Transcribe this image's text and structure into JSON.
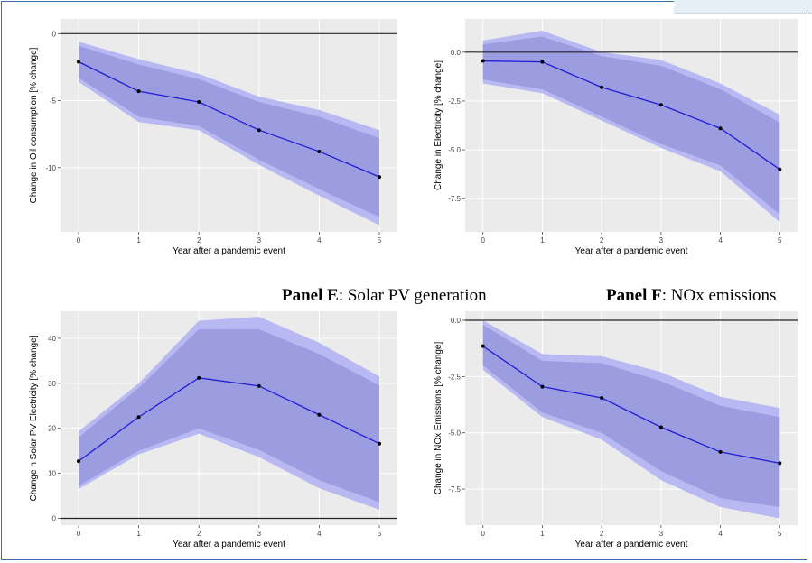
{
  "panel_titles": [
    {
      "bold": "",
      "text": ""
    },
    {
      "bold": "",
      "text": ""
    },
    {
      "bold": "Panel E",
      "text": ": Solar PV generation"
    },
    {
      "bold": "Panel F",
      "text": ": NOx emissions"
    }
  ],
  "colors": {
    "panel_bg": "#ebebeb",
    "grid": "#ffffff",
    "band_outer": "#b8b8f2",
    "band_inner": "#9c9ce0",
    "line": "#1f1fd6",
    "point": "#000000",
    "zero_line": "#222222",
    "frame": "#3a6fb0"
  },
  "chart_data": [
    {
      "type": "line",
      "xlabel": "Year after a pandemic event",
      "ylabel": "Change in Oil consumption [% change]",
      "x": [
        0,
        1,
        2,
        3,
        4,
        5
      ],
      "xticks": [
        "0",
        "1",
        "2",
        "3",
        "4",
        "5"
      ],
      "xlim": [
        -0.3,
        5.3
      ],
      "yticks": [
        0,
        -5,
        -10
      ],
      "yticklabels": [
        "0",
        "-5",
        "-10"
      ],
      "ylim": [
        -14.8,
        1.1
      ],
      "zero_line": 0,
      "grid": true,
      "series": [
        {
          "values": [
            -2.1,
            -4.3,
            -5.1,
            -7.2,
            -8.8,
            -10.7
          ]
        }
      ],
      "band_inner": {
        "lower": [
          -3.3,
          -6.2,
          -6.9,
          -9.4,
          -11.6,
          -13.7
        ],
        "upper": [
          -0.9,
          -2.3,
          -3.4,
          -5.1,
          -6.2,
          -7.8
        ]
      },
      "band_outer": {
        "lower": [
          -3.6,
          -6.6,
          -7.2,
          -9.8,
          -12.1,
          -14.3
        ],
        "upper": [
          -0.6,
          -1.9,
          -3.0,
          -4.7,
          -5.7,
          -7.2
        ]
      }
    },
    {
      "type": "line",
      "xlabel": "Year after a pandemic event",
      "ylabel": "Change in Electricity [% change]",
      "x": [
        0,
        1,
        2,
        3,
        4,
        5
      ],
      "xticks": [
        "0",
        "1",
        "2",
        "3",
        "4",
        "5"
      ],
      "xlim": [
        -0.3,
        5.3
      ],
      "yticks": [
        0.0,
        -2.5,
        -5.0,
        -7.5
      ],
      "yticklabels": [
        "0.0",
        "-2.5",
        "-5.0",
        "-7.5"
      ],
      "ylim": [
        -9.2,
        1.7
      ],
      "zero_line": 0,
      "grid": true,
      "series": [
        {
          "values": [
            -0.45,
            -0.5,
            -1.8,
            -2.7,
            -3.9,
            -6.0
          ]
        }
      ],
      "band_inner": {
        "lower": [
          -1.4,
          -1.9,
          -3.3,
          -4.7,
          -5.8,
          -8.3
        ],
        "upper": [
          0.4,
          0.8,
          -0.2,
          -0.7,
          -1.9,
          -3.6
        ]
      },
      "band_outer": {
        "lower": [
          -1.6,
          -2.1,
          -3.5,
          -4.9,
          -6.1,
          -8.7
        ],
        "upper": [
          0.6,
          1.1,
          0.0,
          -0.4,
          -1.6,
          -3.2
        ]
      }
    },
    {
      "type": "line",
      "xlabel": "Year after a pandemic event",
      "ylabel": "Change n Solar PV Electricity [% change]",
      "x": [
        0,
        1,
        2,
        3,
        4,
        5
      ],
      "xticks": [
        "0",
        "1",
        "2",
        "3",
        "4",
        "5"
      ],
      "xlim": [
        -0.3,
        5.3
      ],
      "yticks": [
        0,
        10,
        20,
        30,
        40
      ],
      "yticklabels": [
        "0",
        "10",
        "20",
        "30",
        "40"
      ],
      "ylim": [
        -1.5,
        46
      ],
      "zero_line": 0,
      "grid": true,
      "series": [
        {
          "values": [
            12.7,
            22.5,
            31.2,
            29.4,
            23.0,
            16.6
          ]
        }
      ],
      "band_inner": {
        "lower": [
          7.2,
          15.0,
          20.0,
          15.2,
          8.5,
          3.6
        ],
        "upper": [
          18.0,
          29.0,
          42.0,
          42.0,
          36.5,
          29.5
        ]
      },
      "band_outer": {
        "lower": [
          6.5,
          14.2,
          18.8,
          13.6,
          6.7,
          1.9
        ],
        "upper": [
          19.3,
          30.0,
          43.9,
          44.8,
          39.0,
          31.5
        ]
      }
    },
    {
      "type": "line",
      "xlabel": "Year after a pandemic event",
      "ylabel": "Change in NOx Emissions [% change]",
      "x": [
        0,
        1,
        2,
        3,
        4,
        5
      ],
      "xticks": [
        "0",
        "1",
        "2",
        "3",
        "4",
        "5"
      ],
      "xlim": [
        -0.3,
        5.3
      ],
      "yticks": [
        0.0,
        -2.5,
        -5.0,
        -7.5
      ],
      "yticklabels": [
        "0.0",
        "-2.5",
        "-5.0",
        "-7.5"
      ],
      "ylim": [
        -9.1,
        0.4
      ],
      "zero_line": 0,
      "grid": true,
      "series": [
        {
          "values": [
            -1.15,
            -2.95,
            -3.45,
            -4.75,
            -5.85,
            -6.35
          ]
        }
      ],
      "band_inner": {
        "lower": [
          -2.0,
          -4.1,
          -5.0,
          -6.7,
          -7.9,
          -8.3
        ],
        "upper": [
          -0.2,
          -1.8,
          -1.9,
          -2.7,
          -3.8,
          -4.3
        ]
      },
      "band_outer": {
        "lower": [
          -2.2,
          -4.3,
          -5.3,
          -7.1,
          -8.3,
          -8.8
        ],
        "upper": [
          0.0,
          -1.5,
          -1.6,
          -2.3,
          -3.4,
          -3.9
        ]
      }
    }
  ]
}
